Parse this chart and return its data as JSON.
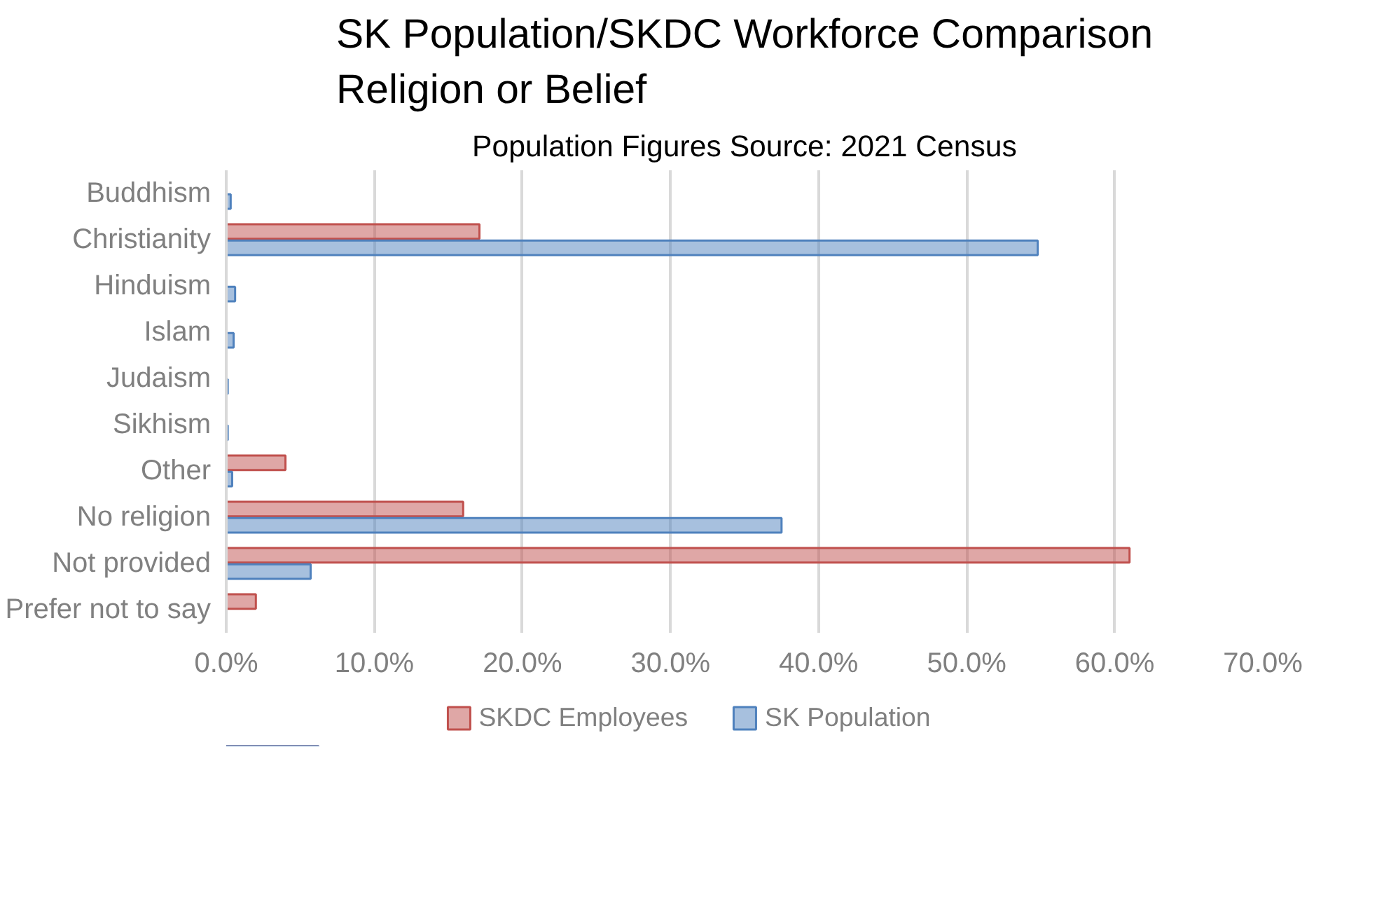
{
  "chart_data": {
    "type": "bar",
    "orientation": "horizontal",
    "title": "SK Population/SKDC Workforce Comparison\nReligion or Belief",
    "subtitle": "Population Figures Source: 2021 Census",
    "categories": [
      "Buddhism",
      "Christianity",
      "Hinduism",
      "Islam",
      "Judaism",
      "Sikhism",
      "Other",
      "No religion",
      "Not provided",
      "Prefer not to say"
    ],
    "series": [
      {
        "name": "SKDC Employees",
        "color": "#c0504d",
        "values": [
          0,
          17.1,
          0,
          0,
          0,
          0,
          4.0,
          16.0,
          61.0,
          2.0
        ]
      },
      {
        "name": "SK Population",
        "color": "#4f81bd",
        "values": [
          0.3,
          54.8,
          0.6,
          0.5,
          0.1,
          0.1,
          0.4,
          37.5,
          5.7,
          null
        ]
      }
    ],
    "xlim": [
      0,
      70
    ],
    "xticks": [
      {
        "value": 0,
        "label": "0.0%"
      },
      {
        "value": 10,
        "label": "10.0%"
      },
      {
        "value": 20,
        "label": "20.0%"
      },
      {
        "value": 30,
        "label": "30.0%"
      },
      {
        "value": 40,
        "label": "40.0%"
      },
      {
        "value": 50,
        "label": "50.0%"
      },
      {
        "value": 60,
        "label": "60.0%"
      },
      {
        "value": 70,
        "label": "70.0%"
      }
    ],
    "grid": "x",
    "legend": "bottom"
  }
}
